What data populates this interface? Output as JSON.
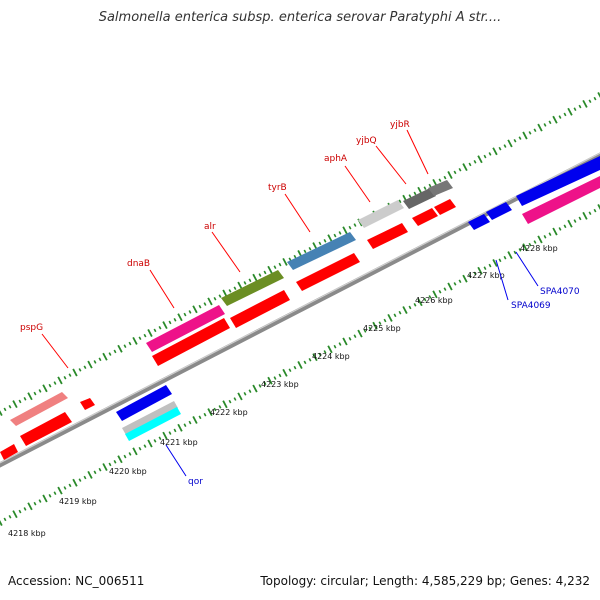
{
  "title": "Salmonella enterica subsp. enterica serovar Paratyphi A str....",
  "footer": {
    "accession": "Accession: NC_006511",
    "summary": "Topology: circular; Length: 4,585,229 bp; Genes: 4,232"
  },
  "colors": {
    "forward_label": "#cc0000",
    "reverse_label": "#0000cc",
    "tick_green": "#2a8a2a",
    "backbone": "#888888"
  },
  "kbp_labels": [
    "4218 kbp",
    "4219 kbp",
    "4220 kbp",
    "4221 kbp",
    "4222 kbp",
    "4223 kbp",
    "4224 kbp",
    "4225 kbp",
    "4226 kbp",
    "4227 kbp",
    "4228 kbp"
  ],
  "forward_genes": [
    "pspG",
    "dnaB",
    "alr",
    "tyrB",
    "aphA",
    "yjbQ",
    "yjbR"
  ],
  "reverse_genes": [
    "qor",
    "SPA4069",
    "SPA4070"
  ]
}
